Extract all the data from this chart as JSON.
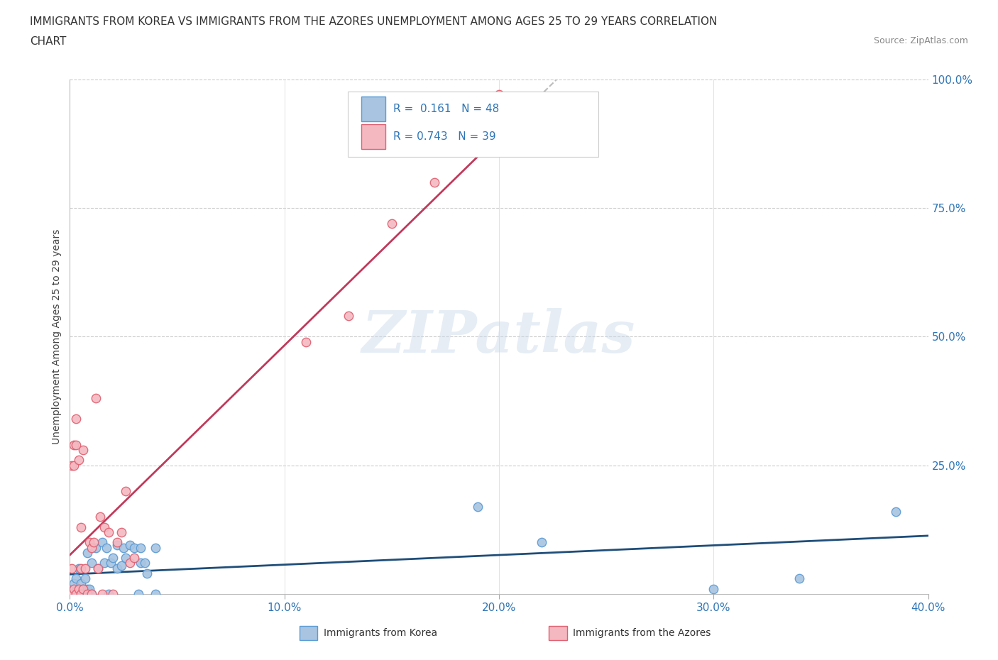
{
  "title_line1": "IMMIGRANTS FROM KOREA VS IMMIGRANTS FROM THE AZORES UNEMPLOYMENT AMONG AGES 25 TO 29 YEARS CORRELATION",
  "title_line2": "CHART",
  "source": "Source: ZipAtlas.com",
  "ylabel": "Unemployment Among Ages 25 to 29 years",
  "xlim": [
    0.0,
    0.4
  ],
  "ylim": [
    0.0,
    1.0
  ],
  "xtick_labels": [
    "0.0%",
    "",
    "10.0%",
    "",
    "20.0%",
    "",
    "30.0%",
    "",
    "40.0%"
  ],
  "xtick_values": [
    0.0,
    0.05,
    0.1,
    0.15,
    0.2,
    0.25,
    0.3,
    0.35,
    0.4
  ],
  "ytick_labels": [
    "25.0%",
    "50.0%",
    "75.0%",
    "100.0%"
  ],
  "ytick_values": [
    0.25,
    0.5,
    0.75,
    1.0
  ],
  "korea_color": "#a8c4e0",
  "korea_edge_color": "#5b9bd5",
  "azores_color": "#f4b8c1",
  "azores_edge_color": "#e06070",
  "korea_trend_color": "#1f4e79",
  "azores_trend_color": "#c0395a",
  "korea_R": 0.161,
  "korea_N": 48,
  "azores_R": 0.743,
  "azores_N": 39,
  "legend_text_color": "#2e75b6",
  "watermark": "ZIPatlas",
  "background_color": "#ffffff",
  "korea_x": [
    0.001,
    0.002,
    0.002,
    0.003,
    0.003,
    0.003,
    0.004,
    0.004,
    0.004,
    0.005,
    0.005,
    0.005,
    0.006,
    0.006,
    0.007,
    0.007,
    0.008,
    0.008,
    0.009,
    0.01,
    0.01,
    0.012,
    0.013,
    0.015,
    0.016,
    0.017,
    0.018,
    0.019,
    0.02,
    0.022,
    0.022,
    0.024,
    0.025,
    0.026,
    0.028,
    0.03,
    0.032,
    0.033,
    0.033,
    0.035,
    0.036,
    0.04,
    0.04,
    0.19,
    0.22,
    0.3,
    0.34,
    0.385
  ],
  "korea_y": [
    0.0,
    0.01,
    0.02,
    0.0,
    0.005,
    0.03,
    0.0,
    0.01,
    0.05,
    0.0,
    0.005,
    0.02,
    0.0,
    0.01,
    0.005,
    0.03,
    0.01,
    0.08,
    0.01,
    0.0,
    0.06,
    0.09,
    0.05,
    0.1,
    0.06,
    0.09,
    0.0,
    0.06,
    0.07,
    0.05,
    0.095,
    0.055,
    0.09,
    0.07,
    0.095,
    0.09,
    0.0,
    0.09,
    0.06,
    0.06,
    0.04,
    0.09,
    0.0,
    0.17,
    0.1,
    0.01,
    0.03,
    0.16
  ],
  "azores_x": [
    0.001,
    0.001,
    0.001,
    0.002,
    0.002,
    0.002,
    0.003,
    0.003,
    0.003,
    0.004,
    0.004,
    0.005,
    0.005,
    0.005,
    0.006,
    0.006,
    0.007,
    0.008,
    0.009,
    0.01,
    0.01,
    0.011,
    0.012,
    0.013,
    0.014,
    0.015,
    0.016,
    0.018,
    0.02,
    0.022,
    0.024,
    0.026,
    0.028,
    0.03,
    0.11,
    0.13,
    0.15,
    0.17,
    0.2
  ],
  "azores_y": [
    0.0,
    0.05,
    0.25,
    0.01,
    0.25,
    0.29,
    0.0,
    0.29,
    0.34,
    0.01,
    0.26,
    0.0,
    0.05,
    0.13,
    0.01,
    0.28,
    0.05,
    0.0,
    0.1,
    0.0,
    0.09,
    0.1,
    0.38,
    0.05,
    0.15,
    0.0,
    0.13,
    0.12,
    0.0,
    0.1,
    0.12,
    0.2,
    0.06,
    0.07,
    0.49,
    0.54,
    0.72,
    0.8,
    0.97
  ]
}
